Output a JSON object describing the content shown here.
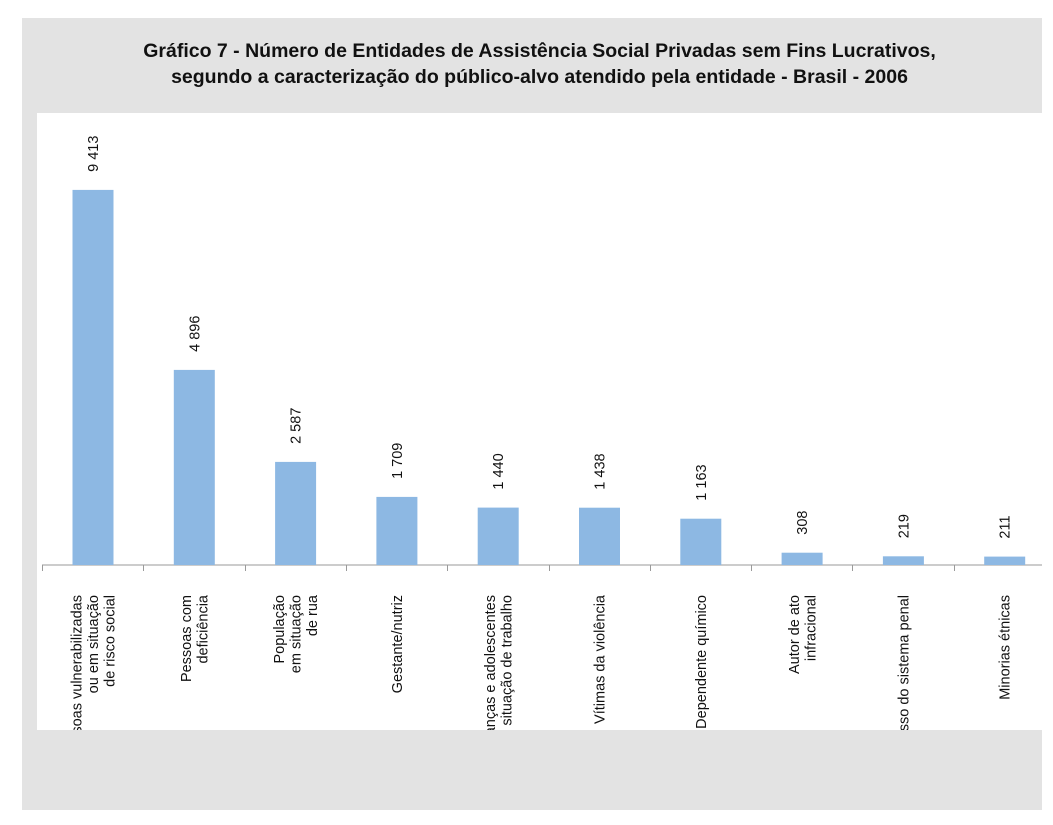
{
  "chart_data": {
    "type": "bar",
    "title_line1": "Gráfico 7 - Número de Entidades de Assistência Social Privadas sem Fins Lucrativos,",
    "title_line2": "segundo a caracterização do público-alvo atendido pela entidade - Brasil - 2006",
    "categories": [
      [
        "Pessoas  vulnerabilizadas",
        "ou em situação",
        "de risco social"
      ],
      [
        "Pessoas com",
        "deficiência"
      ],
      [
        "População",
        "em situação",
        "de rua"
      ],
      [
        "Gestante/nutriz"
      ],
      [
        "Crianças e adolescentes",
        "em situação de trabalho"
      ],
      [
        "Vítimas da violência"
      ],
      [
        "Dependente químico"
      ],
      [
        "Autor de ato",
        "infracional"
      ],
      [
        "Egresso do sistema penal"
      ],
      [
        "Minorias étnicas"
      ]
    ],
    "values": [
      9413,
      4896,
      2587,
      1709,
      1440,
      1438,
      1163,
      308,
      219,
      211
    ],
    "value_labels": [
      "9 413",
      "4 896",
      "2 587",
      "1 709",
      "1 440",
      "1 438",
      "1 163",
      "308",
      "219",
      "211"
    ],
    "bar_color": "#8db8e3",
    "ylim": [
      0,
      10000
    ],
    "grid": false,
    "legend": "none"
  }
}
